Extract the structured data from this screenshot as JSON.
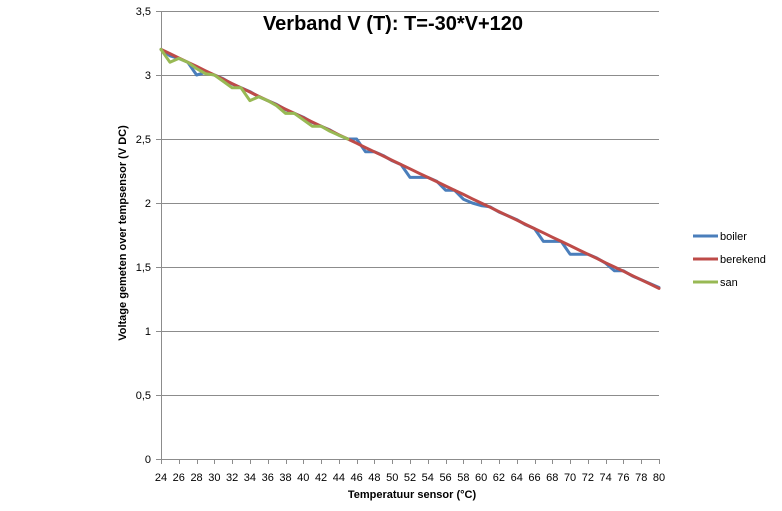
{
  "chart_data": {
    "type": "line",
    "title": "Verband V (T): T=-30*V+120",
    "xlabel": "Temperatuur sensor (°C)",
    "ylabel": "Voltage gemeten over tempsensor (V DC)",
    "ylim": [
      0,
      3.5
    ],
    "y_ticks": [
      "0",
      "0,5",
      "1",
      "1,5",
      "2",
      "2,5",
      "3",
      "3,5"
    ],
    "y_tick_values": [
      0,
      0.5,
      1,
      1.5,
      2,
      2.5,
      3,
      3.5
    ],
    "x_ticks": [
      "24",
      "26",
      "28",
      "30",
      "32",
      "34",
      "36",
      "38",
      "40",
      "42",
      "44",
      "46",
      "48",
      "50",
      "52",
      "54",
      "56",
      "58",
      "60",
      "62",
      "64",
      "66",
      "68",
      "70",
      "72",
      "74",
      "76",
      "78",
      "80"
    ],
    "x_tick_values": [
      24,
      26,
      28,
      30,
      32,
      34,
      36,
      38,
      40,
      42,
      44,
      46,
      48,
      50,
      52,
      54,
      56,
      58,
      60,
      62,
      64,
      66,
      68,
      70,
      72,
      74,
      76,
      78,
      80
    ],
    "xlim": [
      24,
      80
    ],
    "grid": "horizontal",
    "legend_position": "right",
    "series": [
      {
        "name": "boiler",
        "color": "#4a7ebb",
        "points": [
          [
            24,
            3.2
          ],
          [
            25,
            3.15
          ],
          [
            26,
            3.13
          ],
          [
            27,
            3.1
          ],
          [
            28,
            3.0
          ],
          [
            29,
            3.02
          ],
          [
            30,
            3.0
          ],
          [
            31,
            2.97
          ],
          [
            32,
            2.93
          ],
          [
            33,
            2.9
          ],
          [
            34,
            2.87
          ],
          [
            35,
            2.83
          ],
          [
            36,
            2.8
          ],
          [
            37,
            2.77
          ],
          [
            38,
            2.73
          ],
          [
            39,
            2.7
          ],
          [
            40,
            2.67
          ],
          [
            41,
            2.63
          ],
          [
            42,
            2.6
          ],
          [
            43,
            2.57
          ],
          [
            44,
            2.53
          ],
          [
            45,
            2.5
          ],
          [
            46,
            2.5
          ],
          [
            47,
            2.4
          ],
          [
            48,
            2.4
          ],
          [
            49,
            2.37
          ],
          [
            50,
            2.33
          ],
          [
            51,
            2.3
          ],
          [
            52,
            2.2
          ],
          [
            53,
            2.2
          ],
          [
            54,
            2.2
          ],
          [
            55,
            2.17
          ],
          [
            56,
            2.1
          ],
          [
            57,
            2.1
          ],
          [
            58,
            2.03
          ],
          [
            59,
            2.0
          ],
          [
            60,
            1.98
          ],
          [
            61,
            1.97
          ],
          [
            62,
            1.93
          ],
          [
            63,
            1.9
          ],
          [
            64,
            1.87
          ],
          [
            65,
            1.83
          ],
          [
            66,
            1.8
          ],
          [
            67,
            1.7
          ],
          [
            68,
            1.7
          ],
          [
            69,
            1.7
          ],
          [
            70,
            1.6
          ],
          [
            71,
            1.6
          ],
          [
            72,
            1.6
          ],
          [
            73,
            1.57
          ],
          [
            74,
            1.53
          ],
          [
            75,
            1.47
          ],
          [
            76,
            1.47
          ],
          [
            77,
            1.43
          ],
          [
            78,
            1.4
          ],
          [
            79,
            1.37
          ],
          [
            80,
            1.34
          ]
        ]
      },
      {
        "name": "berekend",
        "color": "#be4b48",
        "points": [
          [
            24,
            3.2
          ],
          [
            25,
            3.167
          ],
          [
            26,
            3.133
          ],
          [
            27,
            3.1
          ],
          [
            28,
            3.067
          ],
          [
            29,
            3.033
          ],
          [
            30,
            3.0
          ],
          [
            31,
            2.967
          ],
          [
            32,
            2.933
          ],
          [
            33,
            2.9
          ],
          [
            34,
            2.867
          ],
          [
            35,
            2.833
          ],
          [
            36,
            2.8
          ],
          [
            37,
            2.767
          ],
          [
            38,
            2.733
          ],
          [
            39,
            2.7
          ],
          [
            40,
            2.667
          ],
          [
            41,
            2.633
          ],
          [
            42,
            2.6
          ],
          [
            43,
            2.567
          ],
          [
            44,
            2.533
          ],
          [
            45,
            2.5
          ],
          [
            46,
            2.467
          ],
          [
            47,
            2.433
          ],
          [
            48,
            2.4
          ],
          [
            49,
            2.367
          ],
          [
            50,
            2.333
          ],
          [
            51,
            2.3
          ],
          [
            52,
            2.267
          ],
          [
            53,
            2.233
          ],
          [
            54,
            2.2
          ],
          [
            55,
            2.167
          ],
          [
            56,
            2.133
          ],
          [
            57,
            2.1
          ],
          [
            58,
            2.067
          ],
          [
            59,
            2.033
          ],
          [
            60,
            2.0
          ],
          [
            61,
            1.967
          ],
          [
            62,
            1.933
          ],
          [
            63,
            1.9
          ],
          [
            64,
            1.867
          ],
          [
            65,
            1.833
          ],
          [
            66,
            1.8
          ],
          [
            67,
            1.767
          ],
          [
            68,
            1.733
          ],
          [
            69,
            1.7
          ],
          [
            70,
            1.667
          ],
          [
            71,
            1.633
          ],
          [
            72,
            1.6
          ],
          [
            73,
            1.567
          ],
          [
            74,
            1.533
          ],
          [
            75,
            1.5
          ],
          [
            76,
            1.467
          ],
          [
            77,
            1.433
          ],
          [
            78,
            1.4
          ],
          [
            79,
            1.367
          ],
          [
            80,
            1.333
          ]
        ]
      },
      {
        "name": "san",
        "color": "#98b954",
        "points": [
          [
            24,
            3.2
          ],
          [
            25,
            3.1
          ],
          [
            26,
            3.13
          ],
          [
            27,
            3.1
          ],
          [
            28,
            3.05
          ],
          [
            29,
            3.01
          ],
          [
            30,
            3.0
          ],
          [
            31,
            2.95
          ],
          [
            32,
            2.9
          ],
          [
            33,
            2.9
          ],
          [
            34,
            2.8
          ],
          [
            35,
            2.83
          ],
          [
            36,
            2.8
          ],
          [
            37,
            2.76
          ],
          [
            38,
            2.7
          ],
          [
            39,
            2.7
          ],
          [
            40,
            2.65
          ],
          [
            41,
            2.6
          ],
          [
            42,
            2.6
          ],
          [
            43,
            2.56
          ],
          [
            44,
            2.53
          ],
          [
            45,
            2.5
          ]
        ]
      }
    ]
  }
}
